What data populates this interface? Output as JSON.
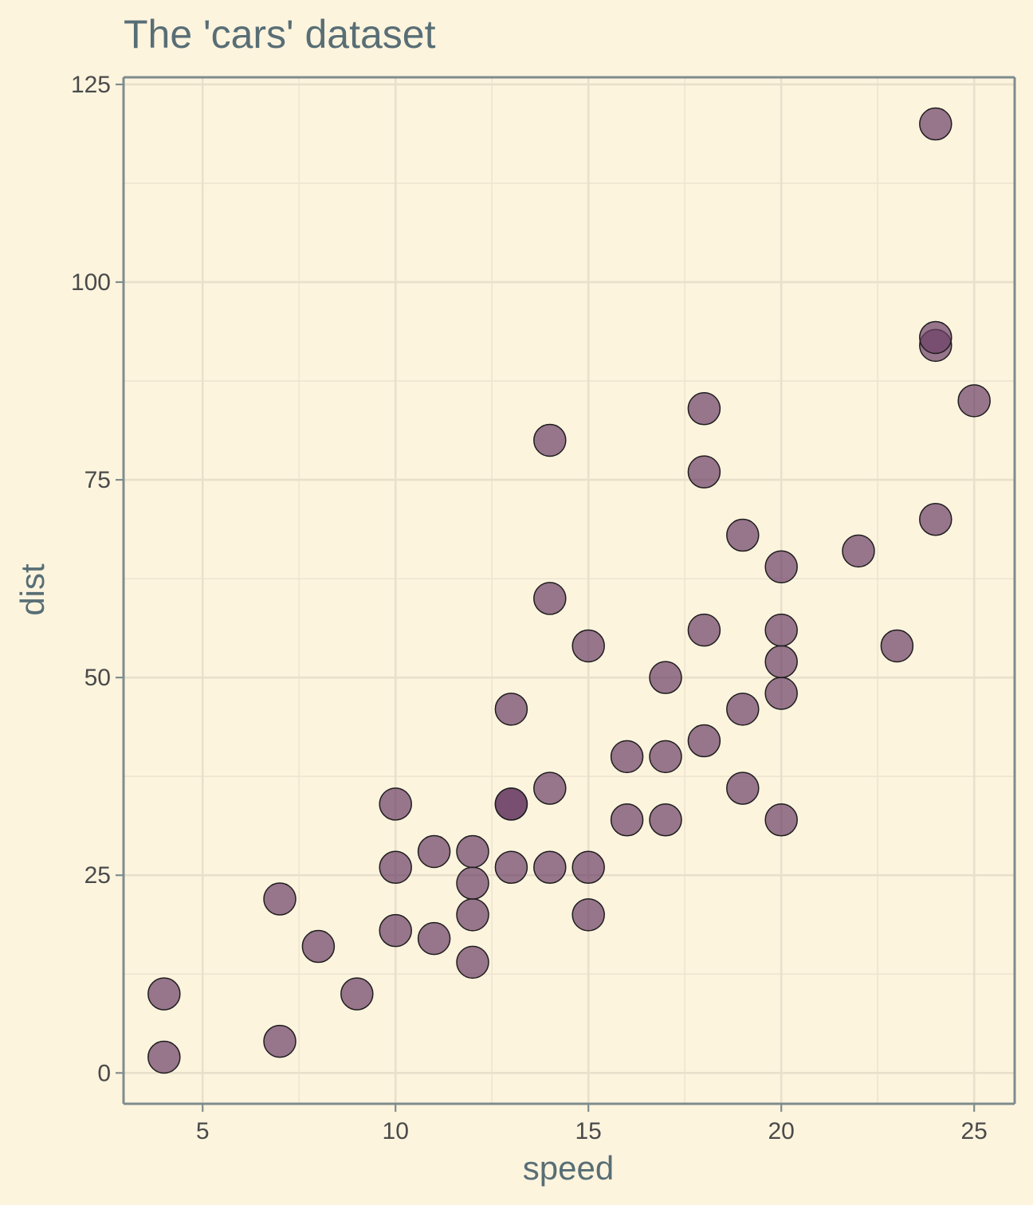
{
  "chart_data": {
    "type": "scatter",
    "title": "The 'cars' dataset",
    "xlabel": "speed",
    "ylabel": "dist",
    "xlim": [
      2.95,
      26.05
    ],
    "ylim": [
      -3.9,
      125.9
    ],
    "x_ticks": [
      5,
      10,
      15,
      20,
      25
    ],
    "y_ticks": [
      0,
      25,
      50,
      75,
      100,
      125
    ],
    "grid": true,
    "point_color": "#6b3e66",
    "point_opacity": 0.7,
    "points": [
      {
        "x": 4,
        "y": 2
      },
      {
        "x": 4,
        "y": 10
      },
      {
        "x": 7,
        "y": 4
      },
      {
        "x": 7,
        "y": 22
      },
      {
        "x": 8,
        "y": 16
      },
      {
        "x": 9,
        "y": 10
      },
      {
        "x": 10,
        "y": 18
      },
      {
        "x": 10,
        "y": 26
      },
      {
        "x": 10,
        "y": 34
      },
      {
        "x": 11,
        "y": 17
      },
      {
        "x": 11,
        "y": 28
      },
      {
        "x": 12,
        "y": 14
      },
      {
        "x": 12,
        "y": 20
      },
      {
        "x": 12,
        "y": 24
      },
      {
        "x": 12,
        "y": 28
      },
      {
        "x": 13,
        "y": 26
      },
      {
        "x": 13,
        "y": 34
      },
      {
        "x": 13,
        "y": 34
      },
      {
        "x": 13,
        "y": 46
      },
      {
        "x": 14,
        "y": 26
      },
      {
        "x": 14,
        "y": 36
      },
      {
        "x": 14,
        "y": 60
      },
      {
        "x": 14,
        "y": 80
      },
      {
        "x": 15,
        "y": 20
      },
      {
        "x": 15,
        "y": 26
      },
      {
        "x": 15,
        "y": 54
      },
      {
        "x": 16,
        "y": 32
      },
      {
        "x": 16,
        "y": 40
      },
      {
        "x": 17,
        "y": 32
      },
      {
        "x": 17,
        "y": 40
      },
      {
        "x": 17,
        "y": 50
      },
      {
        "x": 18,
        "y": 42
      },
      {
        "x": 18,
        "y": 56
      },
      {
        "x": 18,
        "y": 76
      },
      {
        "x": 18,
        "y": 84
      },
      {
        "x": 19,
        "y": 36
      },
      {
        "x": 19,
        "y": 46
      },
      {
        "x": 19,
        "y": 68
      },
      {
        "x": 20,
        "y": 32
      },
      {
        "x": 20,
        "y": 48
      },
      {
        "x": 20,
        "y": 52
      },
      {
        "x": 20,
        "y": 56
      },
      {
        "x": 20,
        "y": 64
      },
      {
        "x": 22,
        "y": 66
      },
      {
        "x": 23,
        "y": 54
      },
      {
        "x": 24,
        "y": 70
      },
      {
        "x": 24,
        "y": 92
      },
      {
        "x": 24,
        "y": 93
      },
      {
        "x": 24,
        "y": 120
      },
      {
        "x": 25,
        "y": 85
      }
    ]
  }
}
